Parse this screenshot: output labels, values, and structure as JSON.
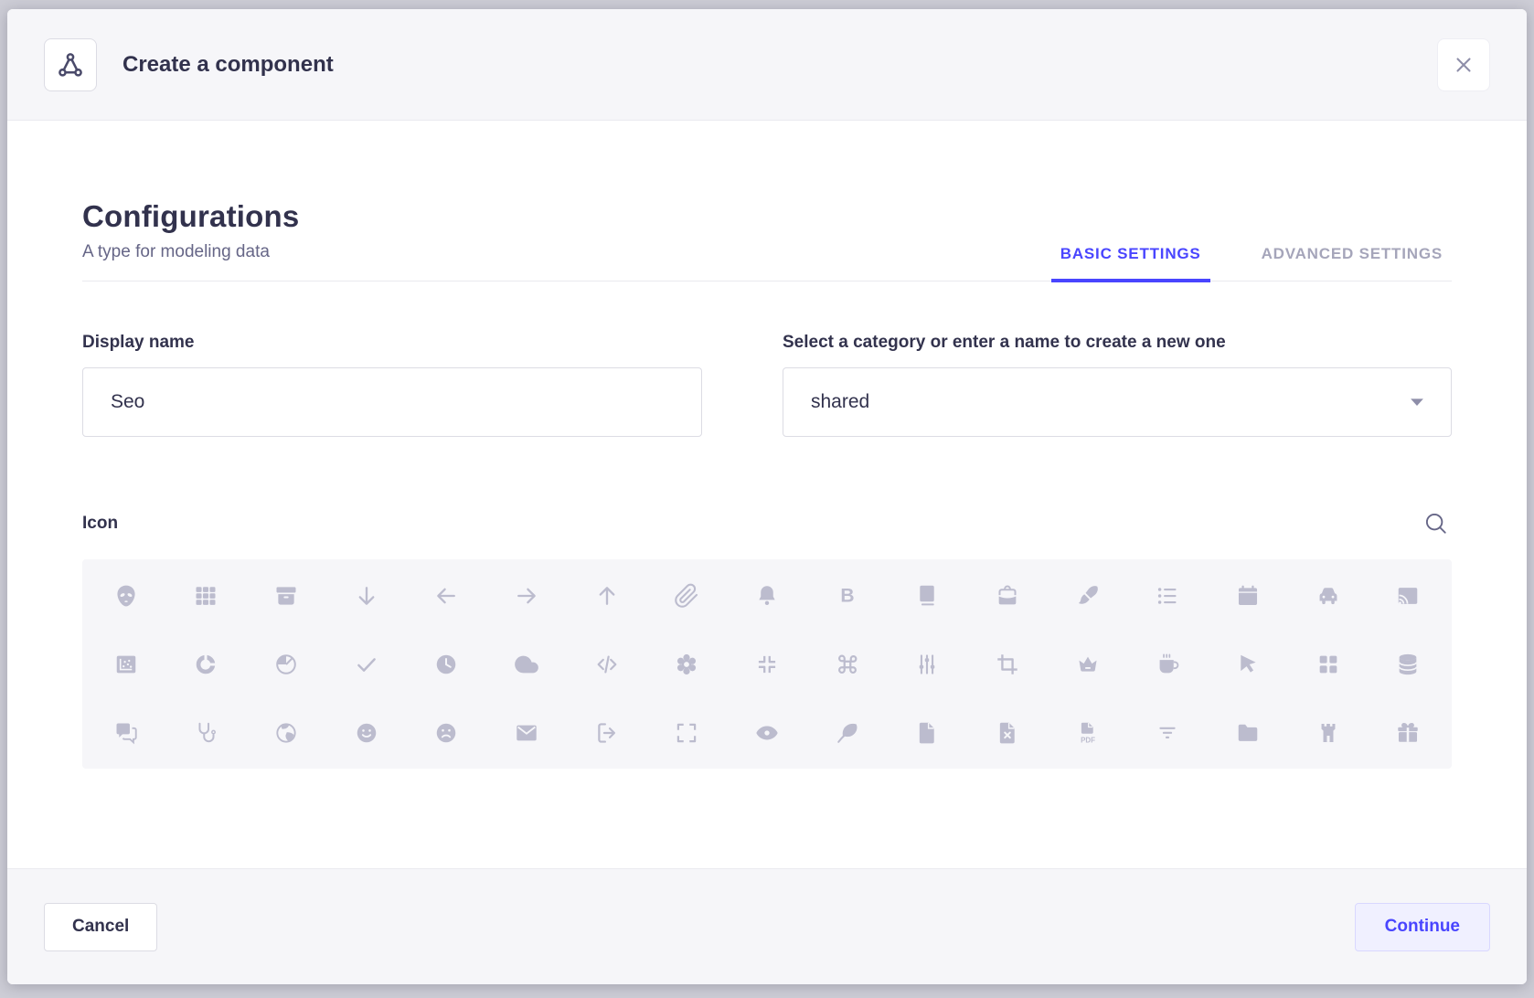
{
  "modal": {
    "header": {
      "title": "Create a component",
      "icon": "component-icon",
      "close_icon": "close-icon"
    },
    "section": {
      "heading": "Configurations",
      "subheading": "A type for modeling data"
    },
    "tabs": [
      {
        "label": "BASIC SETTINGS",
        "active": true
      },
      {
        "label": "ADVANCED SETTINGS",
        "active": false
      }
    ],
    "form": {
      "display_name": {
        "label": "Display name",
        "value": "Seo"
      },
      "category": {
        "label": "Select a category or enter a name to create a new one",
        "value": "shared",
        "caret_icon": "chevron-down-icon"
      }
    },
    "icon_picker": {
      "label": "Icon",
      "search_icon": "search-icon",
      "rows": [
        [
          "alien",
          "grid",
          "archive",
          "arrow-down",
          "arrow-left",
          "arrow-right",
          "arrow-up",
          "paperclip",
          "bell",
          "bold",
          "book",
          "briefcase",
          "paintbrush",
          "bullet-list",
          "calendar",
          "car",
          "cast"
        ],
        [
          "chart-scatter",
          "chart-donut",
          "chart-pie",
          "check",
          "clock",
          "cloud",
          "code",
          "cog",
          "collapse",
          "command",
          "sliders",
          "crop",
          "crown",
          "coffee-cup",
          "cursor",
          "dashboard",
          "database"
        ],
        [
          "discuss",
          "stethoscope",
          "earth",
          "emotion-happy",
          "emotion-unhappy",
          "envelope",
          "exit",
          "expand",
          "eye",
          "feather",
          "file",
          "file-error",
          "file-pdf",
          "filter",
          "folder",
          "castle",
          "gift"
        ]
      ]
    },
    "footer": {
      "cancel_label": "Cancel",
      "continue_label": "Continue"
    }
  },
  "colors": {
    "accent": "#4945ff",
    "accent_bg": "#f0f0ff",
    "accent_border": "#d9d8ff",
    "text": "#32324d",
    "muted_text": "#666687",
    "inactive_tab": "#a5a5ba",
    "border": "#dcdce4",
    "divider": "#eaeaef",
    "panel_bg": "#f6f6f9",
    "picker_icon": "#bcbcce",
    "overlay_bg": "#cdcdd6"
  }
}
